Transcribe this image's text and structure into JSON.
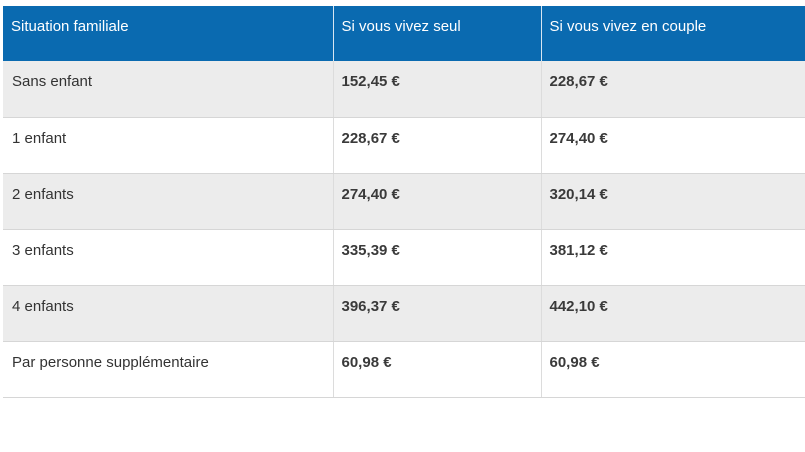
{
  "table": {
    "headers": [
      "Situation familiale",
      "Si vous vivez seul",
      "Si vous vivez en couple"
    ],
    "rows": [
      [
        "Sans enfant",
        "152,45 €",
        "228,67 €"
      ],
      [
        "1 enfant",
        "228,67 €",
        "274,40 €"
      ],
      [
        "2 enfants",
        "274,40 €",
        "320,14 €"
      ],
      [
        "3 enfants",
        "335,39 €",
        "381,12 €"
      ],
      [
        "4 enfants",
        "396,37 €",
        "442,10 €"
      ],
      [
        "Par personne supplémentaire",
        "60,98 €",
        "60,98 €"
      ]
    ]
  },
  "colors": {
    "header_background": "#0a6ab0",
    "header_text": "#ffffff",
    "row_stripe": "#ececec"
  }
}
